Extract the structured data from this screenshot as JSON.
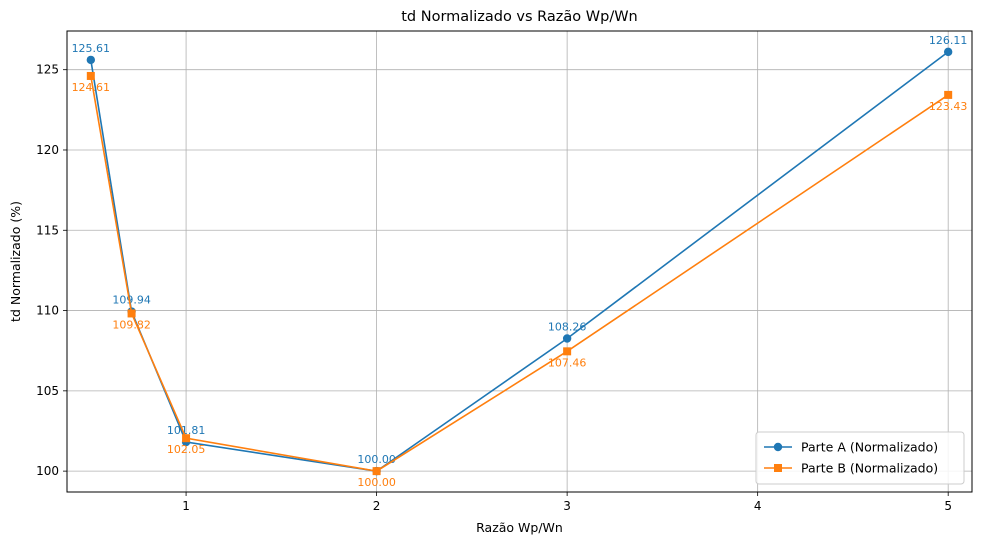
{
  "chart_data": {
    "type": "line",
    "title": "td Normalizado vs Razão Wp/Wn",
    "xlabel": "Razão Wp/Wn",
    "ylabel": "td Normalizado (%)",
    "xlim": [
      0.375,
      5.125
    ],
    "ylim": [
      98.7,
      127.41
    ],
    "x_ticks": [
      1,
      2,
      3,
      4,
      5
    ],
    "y_ticks": [
      100,
      105,
      110,
      115,
      120,
      125
    ],
    "grid": true,
    "legend_position": "lower-right",
    "series": [
      {
        "name": "Parte A (Normalizado)",
        "color": "#1f77b4",
        "marker": "circle",
        "label_position": "above",
        "x": [
          0.5,
          0.714,
          1,
          2,
          3,
          5
        ],
        "values": [
          125.61,
          109.94,
          101.81,
          100.0,
          108.26,
          126.11
        ],
        "labels": [
          "125.61",
          "109.94",
          "101.81",
          "100.00",
          "108.26",
          "126.11"
        ]
      },
      {
        "name": "Parte B (Normalizado)",
        "color": "#ff7f0e",
        "marker": "square",
        "label_position": "below",
        "x": [
          0.5,
          0.714,
          1,
          2,
          3,
          5
        ],
        "values": [
          124.61,
          109.82,
          102.05,
          100.0,
          107.46,
          123.43
        ],
        "labels": [
          "124.61",
          "109.82",
          "102.05",
          "100.00",
          "107.46",
          "123.43"
        ]
      }
    ]
  }
}
